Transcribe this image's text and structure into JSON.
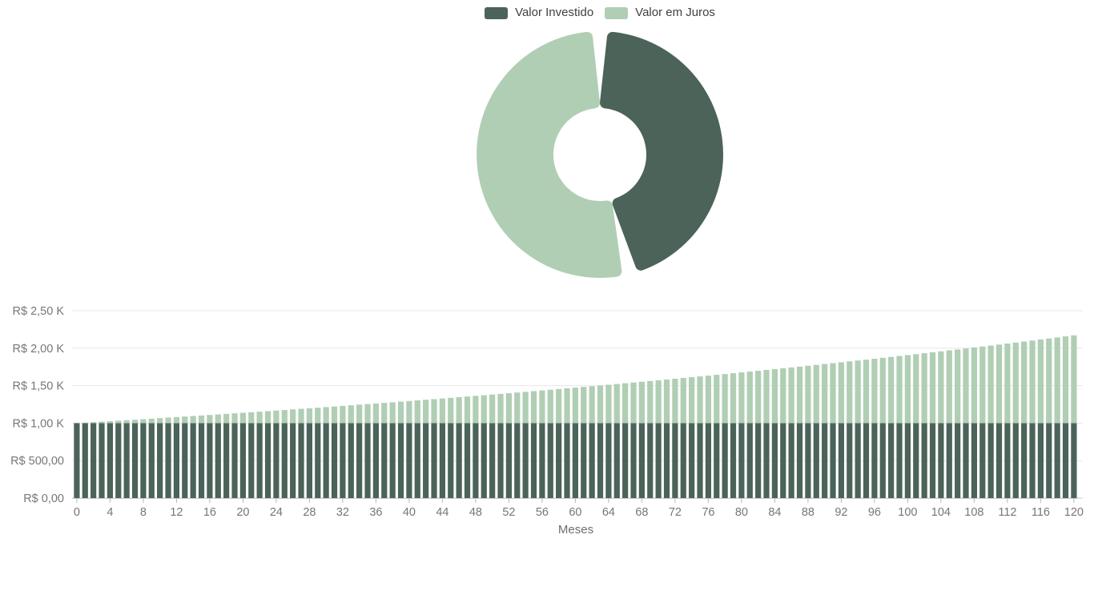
{
  "page": {
    "background": "#ffffff"
  },
  "legend": {
    "items": [
      {
        "label": "Valor Investido",
        "color": "#4b6359"
      },
      {
        "label": "Valor em Juros",
        "color": "#b0ceb4"
      }
    ]
  },
  "chart_data": [
    {
      "type": "pie",
      "subtype": "donut",
      "title": "",
      "labels": [
        "Valor Investido",
        "Valor em Juros"
      ],
      "values": [
        1000,
        1171
      ],
      "percentages": [
        46.1,
        53.9
      ],
      "colors": [
        "#4b6359",
        "#b0ceb4"
      ],
      "legend_position": "top",
      "start_angle_deg": 0,
      "direction": "clockwise"
    },
    {
      "type": "bar",
      "stacked": true,
      "title": "",
      "xlabel": "Meses",
      "ylabel": "",
      "ylim": [
        0,
        2500
      ],
      "grid": "horizontal",
      "x_range": [
        0,
        120
      ],
      "x_ticks": [
        0,
        4,
        8,
        12,
        16,
        20,
        24,
        28,
        32,
        36,
        40,
        44,
        48,
        52,
        56,
        60,
        64,
        68,
        72,
        76,
        80,
        84,
        88,
        92,
        96,
        100,
        104,
        108,
        112,
        116,
        120
      ],
      "y_tick_values": [
        0,
        500,
        1000,
        1500,
        2000,
        2500
      ],
      "y_tick_labels": [
        "R$ 0,00",
        "R$ 500,00",
        "R$ 1,00 K",
        "R$ 1,50 K",
        "R$ 2,00 K",
        "R$ 2,50 K"
      ],
      "series": [
        {
          "name": "Valor Investido",
          "color": "#4b6359",
          "values": [
            1000,
            1000,
            1000,
            1000,
            1000,
            1000,
            1000,
            1000,
            1000,
            1000,
            1000,
            1000,
            1000,
            1000,
            1000,
            1000,
            1000,
            1000,
            1000,
            1000,
            1000,
            1000,
            1000,
            1000,
            1000,
            1000,
            1000,
            1000,
            1000,
            1000,
            1000,
            1000,
            1000,
            1000,
            1000,
            1000,
            1000,
            1000,
            1000,
            1000,
            1000,
            1000,
            1000,
            1000,
            1000,
            1000,
            1000,
            1000,
            1000,
            1000,
            1000,
            1000,
            1000,
            1000,
            1000,
            1000,
            1000,
            1000,
            1000,
            1000,
            1000,
            1000,
            1000,
            1000,
            1000,
            1000,
            1000,
            1000,
            1000,
            1000,
            1000,
            1000,
            1000,
            1000,
            1000,
            1000,
            1000,
            1000,
            1000,
            1000,
            1000,
            1000,
            1000,
            1000,
            1000,
            1000,
            1000,
            1000,
            1000,
            1000,
            1000,
            1000,
            1000,
            1000,
            1000,
            1000,
            1000,
            1000,
            1000,
            1000,
            1000,
            1000,
            1000,
            1000,
            1000,
            1000,
            1000,
            1000,
            1000,
            1000,
            1000,
            1000,
            1000,
            1000,
            1000,
            1000,
            1000,
            1000,
            1000,
            1000,
            1000
          ]
        },
        {
          "name": "Valor em Juros",
          "color": "#b0ceb4",
          "values": [
            0,
            6,
            13,
            20,
            26,
            33,
            40,
            46,
            53,
            60,
            67,
            74,
            81,
            88,
            95,
            102,
            109,
            116,
            123,
            131,
            138,
            145,
            153,
            160,
            168,
            175,
            183,
            191,
            198,
            206,
            214,
            222,
            230,
            238,
            246,
            254,
            262,
            270,
            278,
            287,
            295,
            303,
            312,
            320,
            329,
            337,
            346,
            355,
            364,
            372,
            381,
            390,
            399,
            408,
            417,
            427,
            436,
            445,
            455,
            464,
            473,
            483,
            493,
            502,
            512,
            522,
            532,
            542,
            552,
            562,
            572,
            582,
            592,
            603,
            613,
            623,
            634,
            645,
            655,
            666,
            677,
            688,
            698,
            710,
            721,
            732,
            743,
            754,
            766,
            777,
            789,
            800,
            812,
            824,
            835,
            847,
            859,
            871,
            883,
            896,
            908,
            920,
            933,
            945,
            958,
            971,
            983,
            996,
            1009,
            1022,
            1035,
            1048,
            1062,
            1075,
            1089,
            1102,
            1116,
            1129,
            1143,
            1157,
            1171
          ]
        }
      ]
    }
  ]
}
